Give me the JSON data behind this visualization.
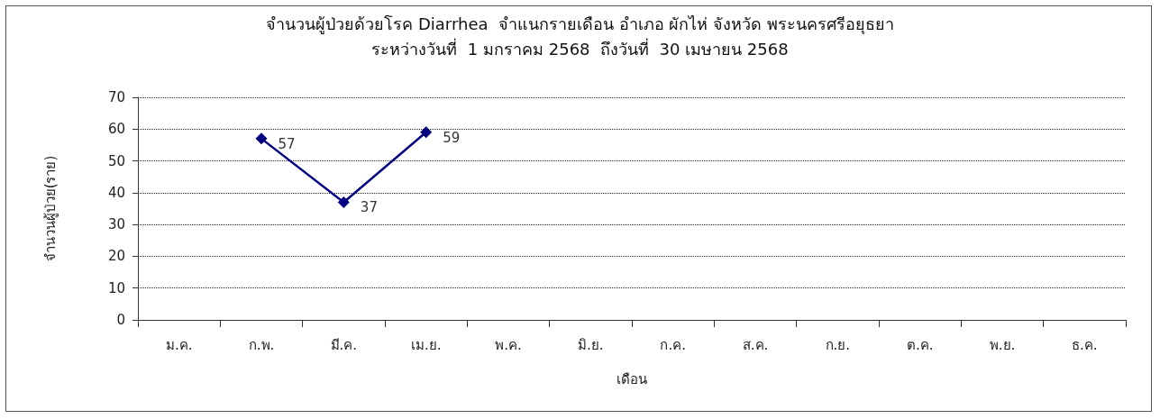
{
  "chart_data": {
    "type": "line",
    "title": "จำนวนผู้ป่วยด้วยโรค Diarrhea  จำแนกรายเดือน อำเภอ ผักไห่ จังหวัด พระนครศรีอยุธยา",
    "subtitle": "ระหว่างวันที่  1 มกราคม 2568  ถึงวันที่  30 เมษายน 2568",
    "xlabel": "เดือน",
    "ylabel": "จำนวนผู้ป่วย(ราย)",
    "categories": [
      "ม.ค.",
      "ก.พ.",
      "มี.ค.",
      "เม.ย.",
      "พ.ค.",
      "มิ.ย.",
      "ก.ค.",
      "ส.ค.",
      "ก.ย.",
      "ต.ค.",
      "พ.ย.",
      "ธ.ค."
    ],
    "series": [
      {
        "color": "#000080",
        "values": [
          null,
          57,
          37,
          59,
          null,
          null,
          null,
          null,
          null,
          null,
          null,
          null
        ]
      }
    ],
    "ylim": [
      0,
      70
    ],
    "yticks": [
      0,
      10,
      20,
      30,
      40,
      50,
      60,
      70
    ],
    "grid": "y",
    "marker": "diamond",
    "line_style": "solid",
    "data_labels": true
  }
}
